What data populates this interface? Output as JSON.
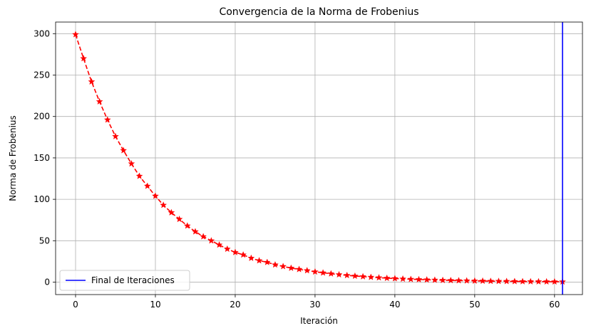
{
  "chart_data": {
    "type": "line",
    "title": "Convergencia de la Norma de Frobenius",
    "xlabel": "Iteración",
    "ylabel": "Norma de Frobenius",
    "xlim": [
      -2.5,
      63.5
    ],
    "ylim": [
      -15,
      314
    ],
    "xticks": [
      0,
      10,
      20,
      30,
      40,
      50,
      60
    ],
    "yticks": [
      0,
      50,
      100,
      150,
      200,
      250,
      300
    ],
    "grid": true,
    "series": [
      {
        "style": "red dashed line with star markers",
        "color": "#ff0000",
        "x": [
          0,
          1,
          2,
          3,
          4,
          5,
          6,
          7,
          8,
          9,
          10,
          11,
          12,
          13,
          14,
          15,
          16,
          17,
          18,
          19,
          20,
          21,
          22,
          23,
          24,
          25,
          26,
          27,
          28,
          29,
          30,
          31,
          32,
          33,
          34,
          35,
          36,
          37,
          38,
          39,
          40,
          41,
          42,
          43,
          44,
          45,
          46,
          47,
          48,
          49,
          50,
          51,
          52,
          53,
          54,
          55,
          56,
          57,
          58,
          59,
          60,
          61
        ],
        "y": [
          299,
          270,
          242,
          218,
          196,
          176,
          159,
          143,
          128,
          116,
          104,
          93,
          84,
          76,
          68,
          61,
          55,
          50,
          45,
          40,
          36,
          33,
          29,
          26,
          24,
          21,
          19,
          17,
          15.5,
          14,
          12.5,
          11.3,
          10.2,
          9.1,
          8.2,
          7.4,
          6.7,
          6.0,
          5.4,
          4.8,
          4.4,
          3.9,
          3.5,
          3.2,
          2.9,
          2.6,
          2.3,
          2.1,
          1.9,
          1.7,
          1.5,
          1.4,
          1.2,
          1.1,
          1.0,
          0.9,
          0.8,
          0.7,
          0.65,
          0.58,
          0.52,
          0.47
        ]
      }
    ],
    "vline": {
      "name": "Final de Iteraciones",
      "x": 61,
      "color": "#0000ff"
    },
    "legend": {
      "position": "lower-left",
      "entries": [
        "Final de Iteraciones"
      ]
    }
  }
}
